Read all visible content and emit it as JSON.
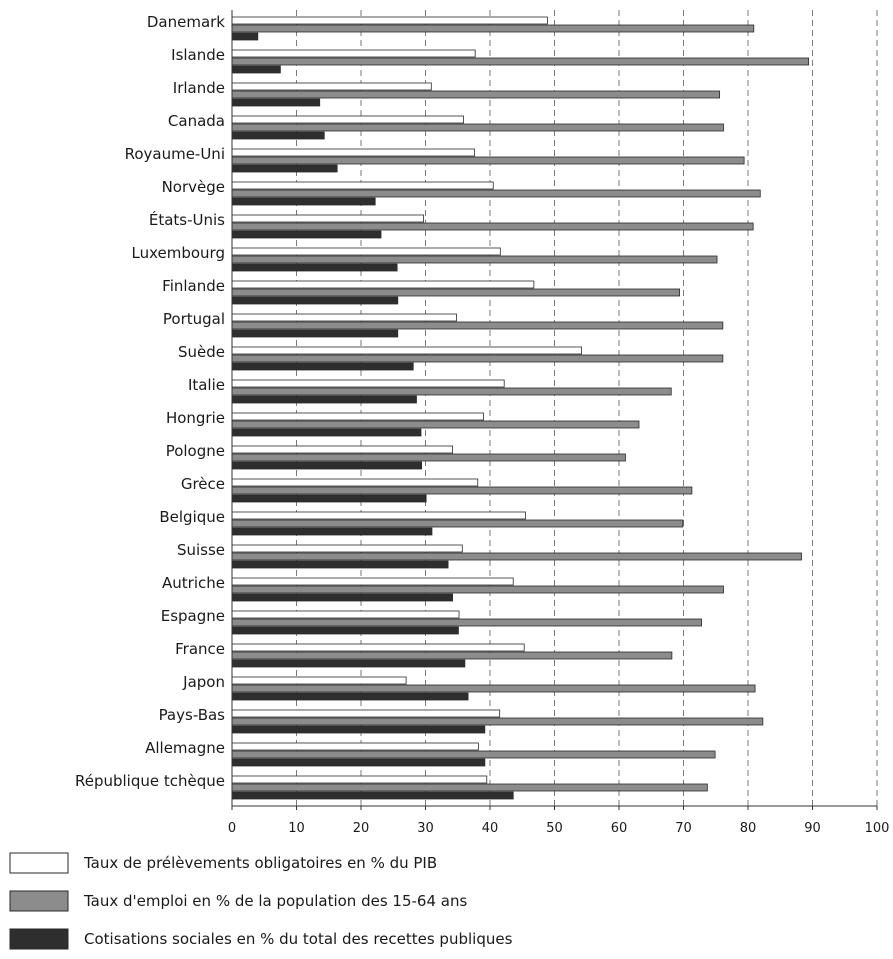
{
  "chart_data": {
    "type": "bar",
    "orientation": "horizontal",
    "categories": [
      "Danemark",
      "Islande",
      "Irlande",
      "Canada",
      "Royaume-Uni",
      "Norvège",
      "États-Unis",
      "Luxembourg",
      "Finlande",
      "Portugal",
      "Suède",
      "Italie",
      "Hongrie",
      "Pologne",
      "Grèce",
      "Belgique",
      "Suisse",
      "Autriche",
      "Espagne",
      "France",
      "Japon",
      "Pays-Bas",
      "Allemagne",
      "République tchèque"
    ],
    "series": [
      {
        "name": "Taux de prélèvements obligatoires en % du PIB",
        "color": "#ffffff",
        "values": [
          48.9,
          37.7,
          30.9,
          35.9,
          37.6,
          40.5,
          29.7,
          41.6,
          46.8,
          34.8,
          54.2,
          42.2,
          39.0,
          34.2,
          38.1,
          45.5,
          35.7,
          43.6,
          35.2,
          45.3,
          27.0,
          41.5,
          38.2,
          39.5
        ]
      },
      {
        "name": "Taux d'emploi en % de la population des 15-64 ans",
        "color": "#8c8c8c",
        "values": [
          80.9,
          89.4,
          75.6,
          76.2,
          79.4,
          81.9,
          80.8,
          75.2,
          69.4,
          76.1,
          76.1,
          68.1,
          63.1,
          61.0,
          71.3,
          69.9,
          88.3,
          76.2,
          72.8,
          68.2,
          81.1,
          82.3,
          74.9,
          73.7
        ]
      },
      {
        "name": "Cotisations sociales en % du total des recettes publiques",
        "color": "#2e2e2e",
        "values": [
          4.0,
          7.5,
          13.6,
          14.3,
          16.3,
          22.2,
          23.1,
          25.6,
          25.7,
          25.7,
          28.1,
          28.6,
          29.3,
          29.4,
          30.1,
          31.0,
          33.5,
          34.2,
          35.1,
          36.1,
          36.6,
          39.2,
          39.2,
          43.6
        ]
      }
    ],
    "x_ticks": [
      "0",
      "10",
      "20",
      "30",
      "40",
      "50",
      "60",
      "70",
      "80",
      "90",
      "100"
    ],
    "xlim": [
      0,
      100
    ],
    "grid": "vertical-dashed"
  }
}
